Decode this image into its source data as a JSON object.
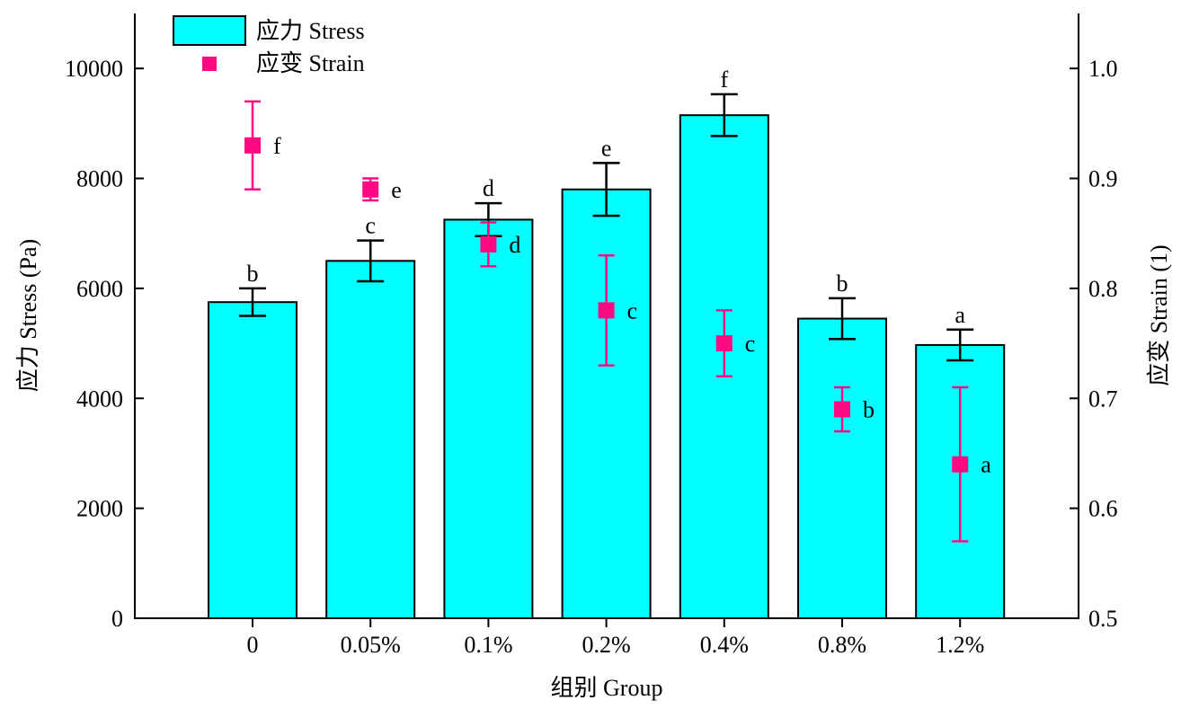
{
  "chart_data": {
    "type": "bar",
    "categories": [
      "0",
      "0.05%",
      "0.1%",
      "0.2%",
      "0.4%",
      "0.8%",
      "1.2%"
    ],
    "xlabel": "组别 Group",
    "ylabel_left": "应力 Stress (Pa)",
    "ylabel_right": "应变 Strain (1)",
    "ylim_left": [
      0,
      11000
    ],
    "ylim_right": [
      0.5,
      1.05
    ],
    "yticks_left": [
      "0",
      "2000",
      "4000",
      "6000",
      "8000",
      "10000"
    ],
    "yticks_right": [
      "0.5",
      "0.6",
      "0.7",
      "0.8",
      "0.9",
      "1.0"
    ],
    "grid": false,
    "legend_position": "top-left",
    "series": [
      {
        "name": "应力 Stress",
        "kind": "bar",
        "axis": "left",
        "color": "#00FFFF",
        "values": [
          5750,
          6500,
          7250,
          7800,
          9150,
          5450,
          4970
        ],
        "errors": [
          250,
          370,
          300,
          480,
          380,
          370,
          280
        ],
        "labels": [
          "b",
          "c",
          "d",
          "e",
          "f",
          "b",
          "a"
        ]
      },
      {
        "name": "应变 Strain",
        "kind": "scatter",
        "axis": "right",
        "color": "#FF0A82",
        "values": [
          0.93,
          0.89,
          0.84,
          0.78,
          0.75,
          0.69,
          0.64
        ],
        "errors": [
          0.04,
          0.01,
          0.02,
          0.05,
          0.03,
          0.02,
          0.07
        ],
        "labels": [
          "f",
          "e",
          "d",
          "c",
          "c",
          "b",
          "a"
        ]
      }
    ]
  }
}
